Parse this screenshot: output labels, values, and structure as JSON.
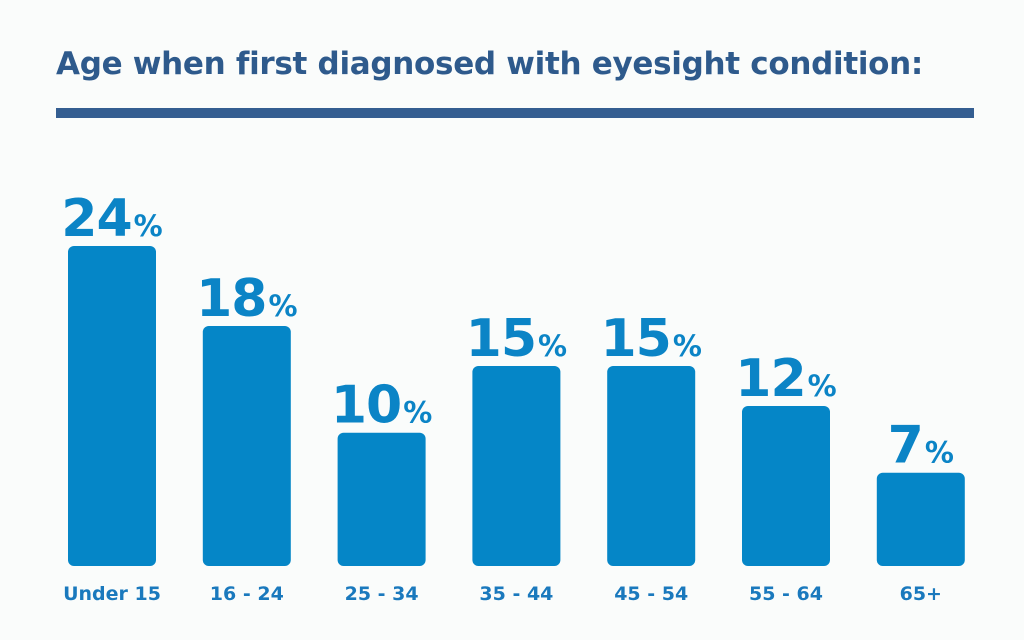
{
  "chart_data": {
    "type": "bar",
    "title": "Age when first diagnosed with eyesight condition:",
    "categories": [
      "Under 15",
      "16 - 24",
      "25 - 34",
      "35 - 44",
      "45 - 54",
      "55 - 64",
      "65+"
    ],
    "values": [
      24,
      18,
      10,
      15,
      15,
      12,
      7
    ],
    "value_suffix": "%",
    "ylim": [
      0,
      24
    ],
    "grid": false,
    "legend": "none",
    "colors": {
      "bar": "#0586c7",
      "value_label": "#0b84c6",
      "category_label": "#1a79bd",
      "title": "#2e5a8c",
      "rule": "#345e91"
    }
  }
}
